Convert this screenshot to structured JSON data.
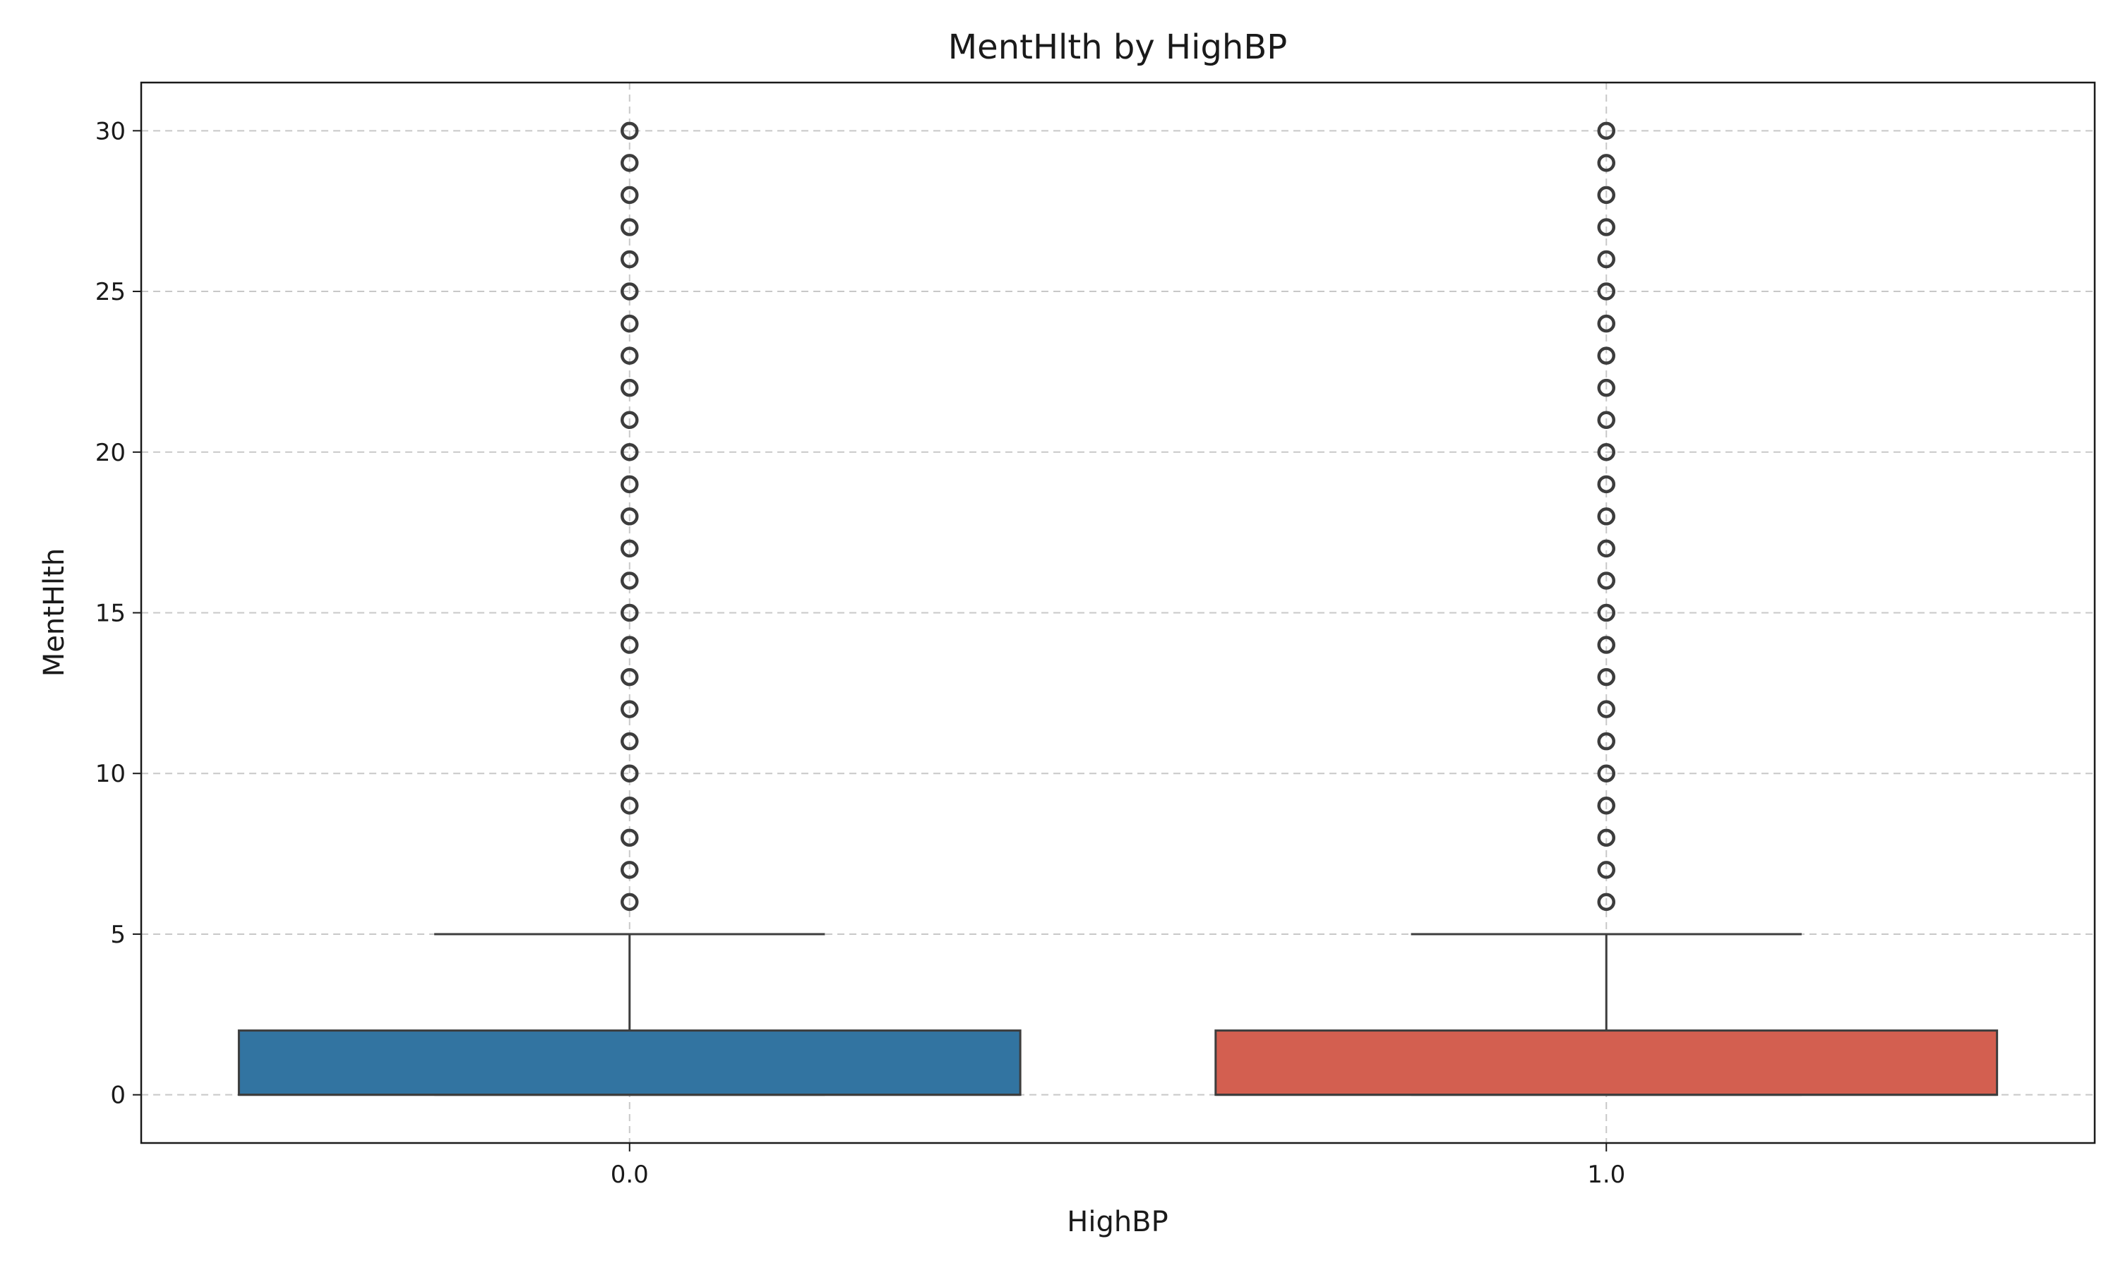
{
  "chart_data": {
    "type": "box",
    "title": "MentHlth by HighBP",
    "xlabel": "HighBP",
    "ylabel": "MentHlth",
    "categories": [
      "0.0",
      "1.0"
    ],
    "ylim": [
      -1.5,
      31.5
    ],
    "yticks": [
      0,
      5,
      10,
      15,
      20,
      25,
      30
    ],
    "grid": true,
    "boxes": [
      {
        "category": "0.0",
        "color": "#3274a1",
        "q1": 0,
        "median": 0,
        "q3": 2,
        "whisker_low": 0,
        "whisker_high": 5,
        "outliers": [
          6,
          7,
          8,
          9,
          10,
          11,
          12,
          13,
          14,
          15,
          16,
          17,
          18,
          19,
          20,
          21,
          22,
          23,
          24,
          25,
          26,
          27,
          28,
          29,
          30
        ]
      },
      {
        "category": "1.0",
        "color": "#d35f50",
        "q1": 0,
        "median": 0,
        "q3": 2,
        "whisker_low": 0,
        "whisker_high": 5,
        "outliers": [
          6,
          7,
          8,
          9,
          10,
          11,
          12,
          13,
          14,
          15,
          16,
          17,
          18,
          19,
          20,
          21,
          22,
          23,
          24,
          25,
          26,
          27,
          28,
          29,
          30
        ]
      }
    ]
  }
}
